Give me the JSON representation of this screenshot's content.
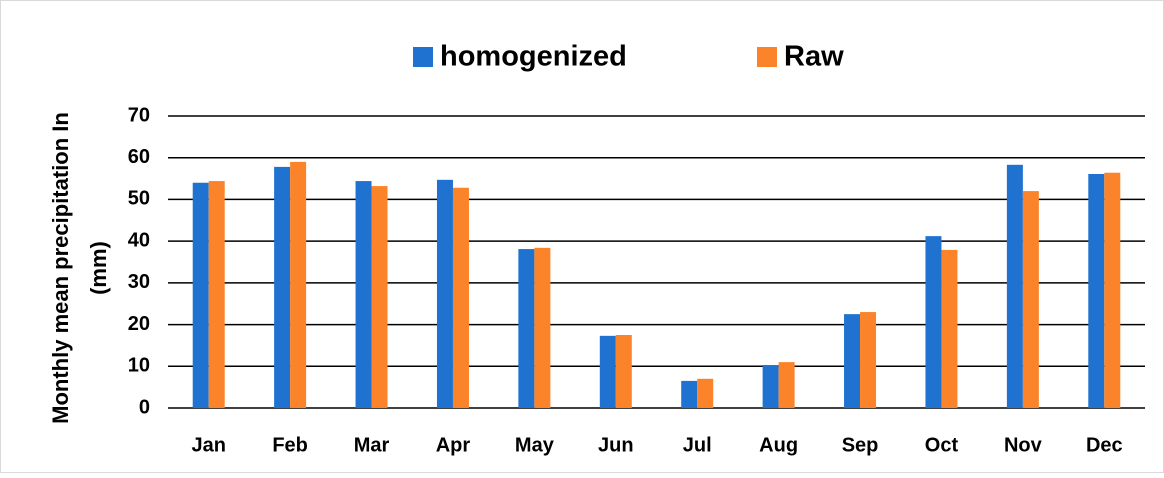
{
  "chart_data": {
    "type": "bar",
    "y_label": [
      "Monthly mean precipitation In",
      "(mm)"
    ],
    "categories": [
      "Jan",
      "Feb",
      "Mar",
      "Apr",
      "May",
      "Jun",
      "Jul",
      "Aug",
      "Sep",
      "Oct",
      "Nov",
      "Dec"
    ],
    "series": [
      {
        "name": "homogenized",
        "color": "#1f72d0",
        "values": [
          54,
          57.8,
          54.4,
          54.7,
          38.1,
          17.3,
          6.5,
          10.3,
          22.5,
          41.2,
          58.3,
          56.1
        ]
      },
      {
        "name": "Raw",
        "color": "#fb842b",
        "values": [
          54.4,
          59,
          53.2,
          52.8,
          38.4,
          17.5,
          7,
          11,
          23,
          37.9,
          52,
          56.4
        ]
      }
    ],
    "ylim": [
      0,
      70
    ],
    "yticks": [
      0,
      10,
      20,
      30,
      40,
      50,
      60,
      70
    ],
    "grid": true,
    "legend": "top"
  }
}
